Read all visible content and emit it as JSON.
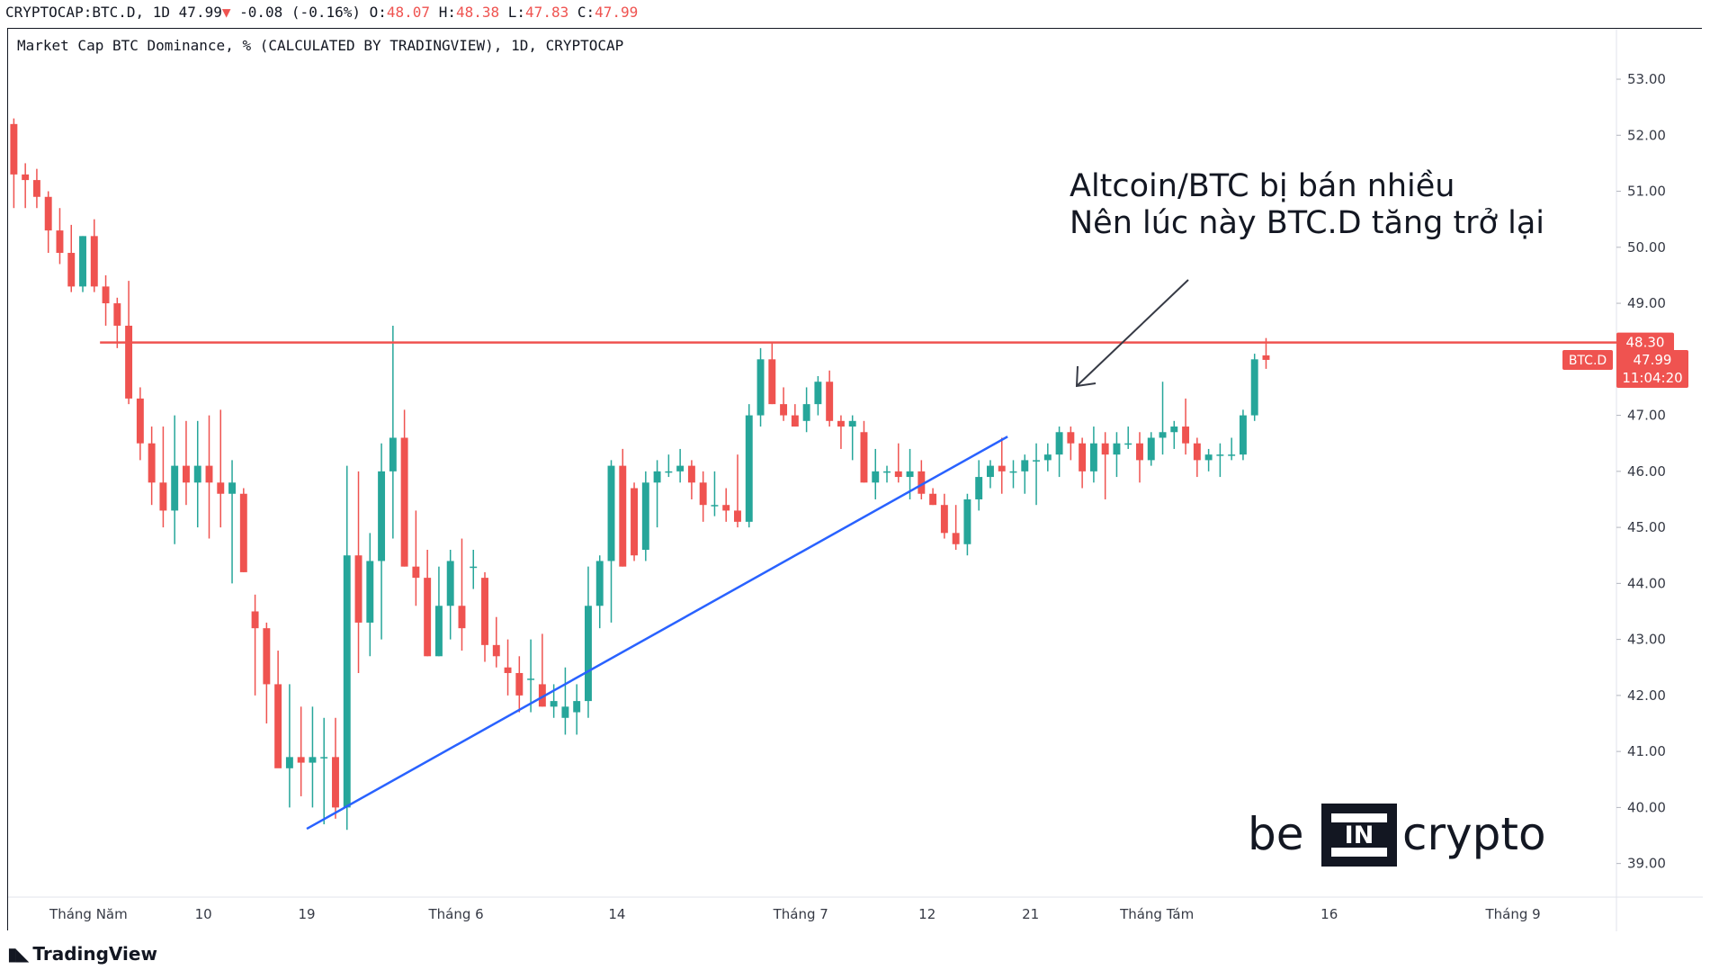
{
  "header": {
    "symbol": "CRYPTOCAP:BTC.D,",
    "interval": "1D",
    "last": "47.99",
    "change": "-0.08 (-0.16%)",
    "open_label": "O:",
    "open": "48.07",
    "high_label": "H:",
    "high": "48.38",
    "low_label": "L:",
    "low": "47.83",
    "close_label": "C:",
    "close": "47.99"
  },
  "legend": {
    "series_title": "Market Cap BTC Dominance, % (CALCULATED BY TRADINGVIEW), 1D, CRYPTOCAP"
  },
  "annotation": {
    "line1": "Altcoin/BTC bị bán nhiều",
    "line2": "Nên lúc này BTC.D tăng trở lại"
  },
  "price_tags": {
    "resistance": "48.30",
    "symbol_tag": "BTC.D",
    "last_price": "47.99",
    "countdown": "11:04:20"
  },
  "watermark": {
    "be": "be",
    "in": "IN",
    "crypto": "crypto"
  },
  "footer": {
    "brand": "TradingView",
    "icon": "tradingview-logo"
  },
  "colors": {
    "up": "#26a69a",
    "down": "#ef5350",
    "resistance": "#ef5350",
    "support": "#2962ff",
    "text": "#131722",
    "axis_text": "#363a45"
  },
  "chart_data": {
    "type": "candlestick",
    "title": "Market Cap BTC Dominance, % (CALCULATED BY TRADINGVIEW), 1D, CRYPTOCAP",
    "y_axis": {
      "ticks": [
        "53.00",
        "52.00",
        "51.00",
        "50.00",
        "49.00",
        "48.00",
        "47.00",
        "46.00",
        "45.00",
        "44.00",
        "43.00",
        "42.00",
        "41.00",
        "40.00",
        "39.00"
      ],
      "ylim": [
        38.4,
        53.9
      ],
      "side": "right"
    },
    "x_axis": {
      "labels": [
        {
          "text": "Tháng Năm",
          "day": 7
        },
        {
          "text": "10",
          "day": 17
        },
        {
          "text": "19",
          "day": 26
        },
        {
          "text": "Tháng 6",
          "day": 39
        },
        {
          "text": "14",
          "day": 53
        },
        {
          "text": "Tháng 7",
          "day": 69
        },
        {
          "text": "12",
          "day": 80
        },
        {
          "text": "21",
          "day": 89
        },
        {
          "text": "Tháng Tám",
          "day": 100
        },
        {
          "text": "16",
          "day": 115
        },
        {
          "text": "Tháng 9",
          "day": 131
        }
      ],
      "xlim": [
        0,
        140
      ]
    },
    "candles": [
      [
        52.2,
        52.3,
        50.7,
        51.3
      ],
      [
        51.3,
        51.5,
        50.7,
        51.2
      ],
      [
        51.2,
        51.4,
        50.7,
        50.9
      ],
      [
        50.9,
        51.0,
        49.9,
        50.3
      ],
      [
        50.3,
        50.7,
        49.7,
        49.9
      ],
      [
        49.9,
        50.4,
        49.2,
        49.3
      ],
      [
        49.3,
        50.2,
        49.2,
        50.2
      ],
      [
        50.2,
        50.5,
        49.2,
        49.3
      ],
      [
        49.3,
        49.5,
        48.6,
        49.0
      ],
      [
        49.0,
        49.1,
        48.2,
        48.6
      ],
      [
        48.6,
        49.4,
        47.2,
        47.3
      ],
      [
        47.3,
        47.5,
        46.2,
        46.5
      ],
      [
        46.5,
        46.8,
        45.4,
        45.8
      ],
      [
        45.8,
        46.8,
        45.0,
        45.3
      ],
      [
        45.3,
        47.0,
        44.7,
        46.1
      ],
      [
        46.1,
        46.9,
        45.4,
        45.8
      ],
      [
        45.8,
        46.9,
        45.0,
        46.1
      ],
      [
        46.1,
        47.0,
        44.8,
        45.8
      ],
      [
        45.8,
        47.1,
        45.0,
        45.6
      ],
      [
        45.6,
        46.2,
        44.0,
        45.8
      ],
      [
        45.6,
        45.7,
        44.2,
        44.2
      ],
      [
        43.5,
        43.8,
        42.0,
        43.2
      ],
      [
        43.2,
        43.3,
        41.5,
        42.2
      ],
      [
        42.2,
        42.8,
        40.8,
        40.7
      ],
      [
        40.7,
        42.2,
        40.0,
        40.9
      ],
      [
        40.9,
        41.8,
        40.2,
        40.8
      ],
      [
        40.8,
        41.8,
        40.0,
        40.9
      ],
      [
        40.9,
        41.6,
        39.7,
        40.9
      ],
      [
        40.9,
        41.6,
        39.8,
        40.0
      ],
      [
        40.0,
        46.1,
        39.6,
        44.5
      ],
      [
        44.5,
        46.0,
        42.4,
        43.3
      ],
      [
        43.3,
        44.9,
        42.7,
        44.4
      ],
      [
        44.4,
        46.5,
        43.0,
        46.0
      ],
      [
        46.0,
        48.6,
        44.8,
        46.6
      ],
      [
        46.6,
        47.1,
        44.3,
        44.3
      ],
      [
        44.3,
        45.3,
        43.6,
        44.1
      ],
      [
        44.1,
        44.6,
        42.7,
        42.7
      ],
      [
        42.7,
        44.3,
        42.7,
        43.6
      ],
      [
        43.6,
        44.6,
        43.0,
        44.4
      ],
      [
        43.6,
        44.8,
        42.8,
        43.2
      ],
      [
        44.3,
        44.6,
        43.9,
        44.3
      ],
      [
        44.1,
        44.2,
        42.6,
        42.9
      ],
      [
        42.9,
        43.4,
        42.5,
        42.7
      ],
      [
        42.5,
        43.0,
        42.0,
        42.4
      ],
      [
        42.4,
        42.7,
        41.7,
        42.0
      ],
      [
        42.3,
        43.0,
        41.7,
        42.3
      ],
      [
        42.2,
        43.1,
        41.8,
        41.8
      ],
      [
        41.8,
        42.2,
        41.6,
        41.9
      ],
      [
        41.6,
        42.5,
        41.3,
        41.8
      ],
      [
        41.7,
        42.2,
        41.3,
        41.9
      ],
      [
        41.9,
        44.3,
        41.6,
        43.6
      ],
      [
        43.6,
        44.5,
        43.2,
        44.4
      ],
      [
        44.4,
        46.2,
        43.3,
        46.1
      ],
      [
        46.1,
        46.4,
        44.3,
        44.3
      ],
      [
        45.7,
        45.8,
        44.4,
        44.5
      ],
      [
        44.6,
        46.0,
        44.4,
        45.8
      ],
      [
        45.8,
        46.2,
        45.0,
        46.0
      ],
      [
        46.0,
        46.3,
        45.9,
        46.0
      ],
      [
        46.0,
        46.4,
        45.8,
        46.1
      ],
      [
        46.1,
        46.2,
        45.5,
        45.8
      ],
      [
        45.8,
        46.0,
        45.1,
        45.4
      ],
      [
        45.4,
        46.0,
        45.2,
        45.4
      ],
      [
        45.4,
        45.7,
        45.1,
        45.3
      ],
      [
        45.3,
        46.3,
        45.0,
        45.1
      ],
      [
        45.1,
        47.2,
        45.0,
        47.0
      ],
      [
        47.0,
        48.2,
        46.8,
        48.0
      ],
      [
        48.0,
        48.3,
        47.2,
        47.2
      ],
      [
        47.2,
        47.5,
        46.9,
        47.0
      ],
      [
        47.0,
        47.2,
        46.8,
        46.8
      ],
      [
        46.9,
        47.5,
        46.7,
        47.2
      ],
      [
        47.2,
        47.7,
        47.0,
        47.6
      ],
      [
        47.6,
        47.8,
        46.8,
        46.9
      ],
      [
        46.9,
        47.0,
        46.4,
        46.8
      ],
      [
        46.8,
        47.0,
        46.2,
        46.9
      ],
      [
        46.7,
        46.9,
        45.8,
        45.8
      ],
      [
        45.8,
        46.4,
        45.5,
        46.0
      ],
      [
        46.0,
        46.1,
        45.8,
        46.0
      ],
      [
        46.0,
        46.5,
        45.8,
        45.9
      ],
      [
        45.9,
        46.4,
        45.5,
        46.0
      ],
      [
        46.0,
        46.2,
        45.5,
        45.6
      ],
      [
        45.6,
        45.7,
        45.4,
        45.4
      ],
      [
        45.4,
        45.6,
        44.8,
        44.9
      ],
      [
        44.9,
        45.4,
        44.6,
        44.7
      ],
      [
        44.7,
        45.6,
        44.5,
        45.5
      ],
      [
        45.5,
        46.2,
        45.3,
        45.9
      ],
      [
        45.9,
        46.2,
        45.7,
        46.1
      ],
      [
        46.1,
        46.6,
        45.6,
        46.0
      ],
      [
        46.0,
        46.2,
        45.7,
        46.0
      ],
      [
        46.0,
        46.3,
        45.6,
        46.2
      ],
      [
        46.2,
        46.5,
        45.4,
        46.2
      ],
      [
        46.2,
        46.5,
        46.0,
        46.3
      ],
      [
        46.3,
        46.8,
        45.9,
        46.7
      ],
      [
        46.7,
        46.8,
        46.2,
        46.5
      ],
      [
        46.5,
        46.6,
        45.7,
        46.0
      ],
      [
        46.0,
        46.8,
        45.8,
        46.5
      ],
      [
        46.5,
        46.7,
        45.5,
        46.3
      ],
      [
        46.3,
        46.7,
        45.9,
        46.5
      ],
      [
        46.5,
        46.8,
        46.4,
        46.5
      ],
      [
        46.5,
        46.7,
        45.8,
        46.2
      ],
      [
        46.2,
        46.7,
        46.1,
        46.6
      ],
      [
        46.6,
        47.6,
        46.3,
        46.7
      ],
      [
        46.7,
        46.9,
        46.4,
        46.8
      ],
      [
        46.8,
        47.3,
        46.3,
        46.5
      ],
      [
        46.5,
        46.6,
        45.9,
        46.2
      ],
      [
        46.2,
        46.4,
        46.0,
        46.3
      ],
      [
        46.3,
        46.5,
        45.9,
        46.3
      ],
      [
        46.3,
        46.6,
        46.2,
        46.3
      ],
      [
        46.3,
        47.1,
        46.2,
        47.0
      ],
      [
        47.0,
        48.1,
        46.9,
        48.0
      ],
      [
        48.07,
        48.38,
        47.83,
        47.99
      ]
    ],
    "lines": [
      {
        "name": "resistance",
        "value": 48.3,
        "from_day": 8,
        "to_day": 140,
        "color": "#ef5350"
      },
      {
        "name": "support",
        "points": [
          [
            26,
            39.62
          ],
          [
            87,
            46.62
          ]
        ],
        "color": "#2962ff"
      }
    ]
  }
}
